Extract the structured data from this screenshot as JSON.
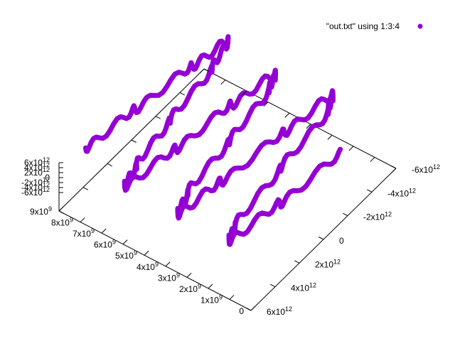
{
  "colors": {
    "series": "#9400d3",
    "axis": "#000000",
    "background": "#ffffff"
  },
  "chart_data": {
    "type": "scatter",
    "projection": "3d",
    "title": "",
    "legend": {
      "placement": "top-right",
      "entries": [
        "\"out.txt\" using 1:3:4"
      ]
    },
    "grid": false,
    "axes": {
      "x": {
        "range": [
          0,
          9000000000
        ],
        "ticks": [
          {
            "value": 0,
            "label": "0"
          },
          {
            "value": 1000000000,
            "label": "1x10",
            "exp": "9"
          },
          {
            "value": 2000000000,
            "label": "2x10",
            "exp": "9"
          },
          {
            "value": 3000000000,
            "label": "3x10",
            "exp": "9"
          },
          {
            "value": 4000000000,
            "label": "4x10",
            "exp": "9"
          },
          {
            "value": 5000000000,
            "label": "5x10",
            "exp": "9"
          },
          {
            "value": 6000000000,
            "label": "6x10",
            "exp": "9"
          },
          {
            "value": 7000000000,
            "label": "7x10",
            "exp": "9"
          },
          {
            "value": 8000000000,
            "label": "8x10",
            "exp": "9"
          },
          {
            "value": 9000000000,
            "label": "9x10",
            "exp": "9"
          }
        ]
      },
      "y": {
        "range": [
          -6000000000000,
          6000000000000
        ],
        "ticks": [
          {
            "value": -6000000000000,
            "label": "-6x10",
            "exp": "12"
          },
          {
            "value": -4000000000000,
            "label": "-4x10",
            "exp": "12"
          },
          {
            "value": -2000000000000,
            "label": "-2x10",
            "exp": "12"
          },
          {
            "value": 0,
            "label": "0"
          },
          {
            "value": 2000000000000,
            "label": "2x10",
            "exp": "12"
          },
          {
            "value": 4000000000000,
            "label": "4x10",
            "exp": "12"
          },
          {
            "value": 6000000000000,
            "label": "6x10",
            "exp": "12"
          }
        ]
      },
      "z": {
        "range": [
          -6000000000000,
          6000000000000
        ],
        "ticks": [
          {
            "value": 6000000000000,
            "label": "6x10",
            "exp": "12"
          },
          {
            "value": 4000000000000,
            "label": "4x10",
            "exp": "12"
          },
          {
            "value": 2000000000000,
            "label": "2x10",
            "exp": "12"
          },
          {
            "value": 0,
            "label": "0"
          },
          {
            "value": -2000000000000,
            "label": "-2x10",
            "exp": "12"
          },
          {
            "value": -4000000000000,
            "label": "-4x10",
            "exp": "12"
          },
          {
            "value": -6000000000000,
            "label": "-6x10",
            "exp": "12"
          }
        ]
      }
    },
    "series": [
      {
        "name": "\"out.txt\" using 1:3:4",
        "note_points": [
          [
            8600000000.0,
            4500000000000.0,
            0
          ],
          [
            8300000000.0,
            1000000000000.0,
            0
          ],
          [
            7900000000.0,
            -3000000000000.0,
            0
          ],
          [
            7600000000.0,
            -5500000000000.0,
            0
          ],
          [
            7200000000.0,
            -3500000000000.0,
            0
          ],
          [
            6900000000.0,
            500000000000.0,
            0
          ],
          [
            6500000000.0,
            4000000000000.0,
            0
          ],
          [
            6200000000.0,
            5500000000000.0,
            0
          ],
          [
            5800000000.0,
            2000000000000.0,
            0
          ],
          [
            5500000000.0,
            -2000000000000.0,
            0
          ],
          [
            5100000000.0,
            -5000000000000.0,
            0
          ],
          [
            4800000000.0,
            -4000000000000.0,
            0
          ],
          [
            4400000000.0,
            0.0,
            0
          ],
          [
            4100000000.0,
            4000000000000.0,
            0
          ],
          [
            3700000000.0,
            5500000000000.0,
            0
          ],
          [
            3400000000.0,
            2500000000000.0,
            0
          ],
          [
            3000000000.0,
            -2000000000000.0,
            0
          ],
          [
            2700000000.0,
            -5500000000000.0,
            0
          ],
          [
            2300000000.0,
            -4500000000000.0,
            0
          ],
          [
            2000000000.0,
            0.0,
            0
          ],
          [
            1600000000.0,
            4500000000000.0,
            0
          ],
          [
            1300000000.0,
            5500000000000.0,
            0
          ],
          [
            900000000.0,
            2000000000000.0,
            0
          ],
          [
            600000000.0,
            -2500000000000.0,
            0
          ]
        ]
      }
    ]
  }
}
